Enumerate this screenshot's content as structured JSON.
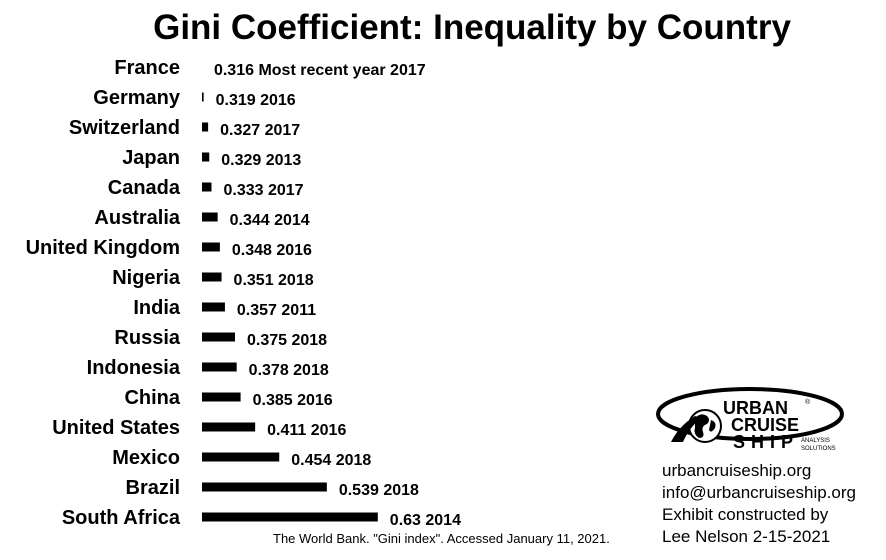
{
  "chart_data": {
    "type": "bar",
    "orientation": "horizontal",
    "title": "Gini Coefficient: Inequality by Country",
    "categories": [
      "France",
      "Germany",
      "Switzerland",
      "Japan",
      "Canada",
      "Australia",
      "United Kingdom",
      "Nigeria",
      "India",
      "Russia",
      "Indonesia",
      "China",
      "United States",
      "Mexico",
      "Brazil",
      "South Africa"
    ],
    "values": [
      0.316,
      0.319,
      0.327,
      0.329,
      0.333,
      0.344,
      0.348,
      0.351,
      0.357,
      0.375,
      0.378,
      0.385,
      0.411,
      0.454,
      0.539,
      0.63
    ],
    "data_labels": [
      "0.316 Most recent year 2017",
      "0.319 2016",
      "0.327 2017",
      "0.329 2013",
      "0.333 2017",
      "0.344 2014",
      "0.348 2016",
      "0.351 2018",
      "0.357 2011",
      "0.375 2018",
      "0.378 2018",
      "0.385 2016",
      "0.411 2016",
      "0.454 2018",
      "0.539 2018",
      "0.63 2014"
    ],
    "bar_color": "#000000",
    "grid": false,
    "axes_visible": false
  },
  "source": "The World Bank. \"Gini index\". Accessed January 11, 2021.",
  "logo": {
    "line1": "URBAN",
    "line2": "CRUISE",
    "line3": "SHIP",
    "tag1": "ANALYSIS",
    "tag2": "SOLUTIONS",
    "mark": "®"
  },
  "contact": {
    "website": "urbancruiseship.org",
    "email": "info@urbancruiseship.org",
    "credit1": "Exhibit constructed by",
    "credit2": "Lee Nelson 2-15-2021"
  }
}
